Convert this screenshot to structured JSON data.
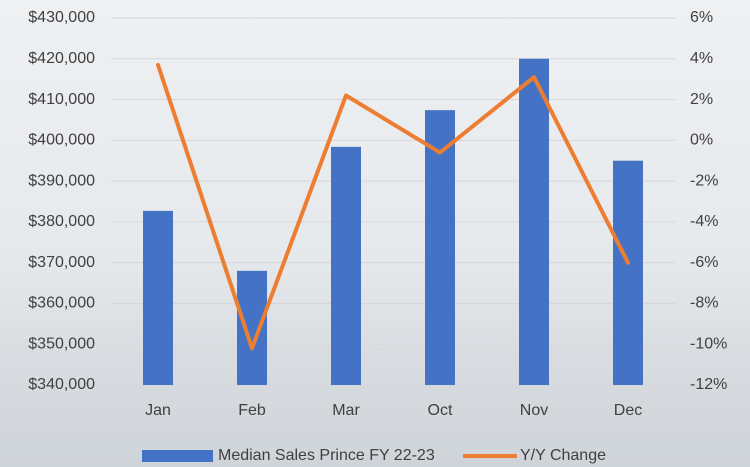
{
  "chart_data": {
    "type": "bar",
    "categories": [
      "Jan",
      "Feb",
      "Mar",
      "Oct",
      "Nov",
      "Dec"
    ],
    "series": [
      {
        "name": "Median Sales Prince FY 22-23",
        "color": "#4472c4",
        "type": "bar",
        "values": [
          382700,
          368000,
          398400,
          407400,
          420000,
          395000
        ]
      },
      {
        "name": "Y/Y Change",
        "color": "#ed7d31",
        "type": "line",
        "axis": "y2",
        "values": [
          3.7,
          -10.2,
          2.2,
          -0.6,
          3.1,
          -6.0
        ]
      }
    ],
    "ylim": [
      340000,
      430000
    ],
    "yticks": [
      {
        "value": 340000,
        "label": "$340,000"
      },
      {
        "value": 350000,
        "label": "$350,000"
      },
      {
        "value": 360000,
        "label": "$360,000"
      },
      {
        "value": 370000,
        "label": "$370,000"
      },
      {
        "value": 380000,
        "label": "$380,000"
      },
      {
        "value": 390000,
        "label": "$390,000"
      },
      {
        "value": 400000,
        "label": "$400,000"
      },
      {
        "value": 410000,
        "label": "$410,000"
      },
      {
        "value": 420000,
        "label": "$420,000"
      },
      {
        "value": 430000,
        "label": "$430,000"
      }
    ],
    "y2lim": [
      -12,
      6
    ],
    "y2ticks": [
      {
        "value": -12,
        "label": "-12%"
      },
      {
        "value": -10,
        "label": "-10%"
      },
      {
        "value": -8,
        "label": "-8%"
      },
      {
        "value": -6,
        "label": "-6%"
      },
      {
        "value": -4,
        "label": "-4%"
      },
      {
        "value": -2,
        "label": "-2%"
      },
      {
        "value": 0,
        "label": "0%"
      },
      {
        "value": 2,
        "label": "2%"
      },
      {
        "value": 4,
        "label": "4%"
      },
      {
        "value": 6,
        "label": "6%"
      }
    ],
    "grid": true,
    "legend": "bottom"
  }
}
